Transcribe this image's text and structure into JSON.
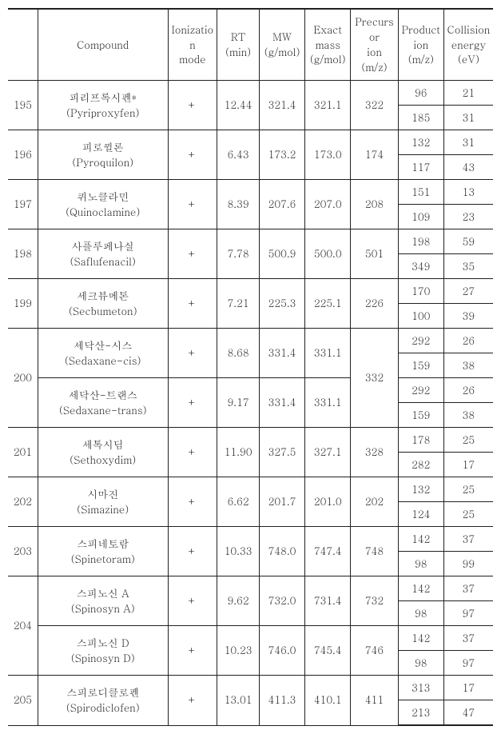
{
  "colors": {
    "border": "#231f20",
    "text": "#231f20",
    "background": "#ffffff"
  },
  "typography": {
    "font_family": "Malgun Gothic / Batang, serif",
    "font_size_pt": 10
  },
  "table": {
    "type": "table",
    "columns": [
      {
        "key": "idx",
        "label": ""
      },
      {
        "key": "compound",
        "label": "Compound"
      },
      {
        "key": "ionization",
        "label": "Ionization\nmode"
      },
      {
        "key": "rt",
        "label": "RT\n(min)"
      },
      {
        "key": "mw",
        "label": "MW\n(g/mol)"
      },
      {
        "key": "exact_mass",
        "label": "Exact\nmass\n(g/mol)"
      },
      {
        "key": "precursor",
        "label": "Precursor\nion\n(m/z)"
      },
      {
        "key": "product",
        "label": "Product\nion\n(m/z)"
      },
      {
        "key": "collision",
        "label": "Collision\nenergy\n(eV)"
      }
    ],
    "rows": [
      {
        "idx": "195",
        "compounds": [
          {
            "name_ko": "피리프록시펜*",
            "name_en": "(Pyriproxyfen)",
            "ionization": "+",
            "rt": "12.44",
            "mw": "321.4",
            "exact_mass": "321.1",
            "products": [
              {
                "prod": "96",
                "ce": "21"
              },
              {
                "prod": "185",
                "ce": "31"
              }
            ]
          }
        ],
        "precursor": "322"
      },
      {
        "idx": "196",
        "compounds": [
          {
            "name_ko": "피로퀼론",
            "name_en": "(Pyroquilon)",
            "ionization": "+",
            "rt": "6.43",
            "mw": "173.2",
            "exact_mass": "173.0",
            "products": [
              {
                "prod": "132",
                "ce": "31"
              },
              {
                "prod": "117",
                "ce": "43"
              }
            ]
          }
        ],
        "precursor": "174"
      },
      {
        "idx": "197",
        "compounds": [
          {
            "name_ko": "퀴노클라민",
            "name_en": "(Quinoclamine)",
            "ionization": "+",
            "rt": "8.39",
            "mw": "207.6",
            "exact_mass": "207.0",
            "products": [
              {
                "prod": "151",
                "ce": "13"
              },
              {
                "prod": "109",
                "ce": "23"
              }
            ]
          }
        ],
        "precursor": "208"
      },
      {
        "idx": "198",
        "compounds": [
          {
            "name_ko": "사플루페나실",
            "name_en": "(Saflufenacil)",
            "ionization": "+",
            "rt": "7.78",
            "mw": "500.9",
            "exact_mass": "500.0",
            "products": [
              {
                "prod": "198",
                "ce": "59"
              },
              {
                "prod": "349",
                "ce": "35"
              }
            ]
          }
        ],
        "precursor": "501"
      },
      {
        "idx": "199",
        "compounds": [
          {
            "name_ko": "세크뷰메톤",
            "name_en": "(Secbumeton)",
            "ionization": "+",
            "rt": "7.21",
            "mw": "225.3",
            "exact_mass": "225.1",
            "products": [
              {
                "prod": "170",
                "ce": "27"
              },
              {
                "prod": "100",
                "ce": "39"
              }
            ]
          }
        ],
        "precursor": "226"
      },
      {
        "idx": "200",
        "compounds": [
          {
            "name_ko": "세닥산-시스",
            "name_en": "(Sedaxane-cis)",
            "ionization": "+",
            "rt": "8.68",
            "mw": "331.4",
            "exact_mass": "331.1",
            "products": [
              {
                "prod": "292",
                "ce": "26"
              },
              {
                "prod": "159",
                "ce": "38"
              }
            ]
          },
          {
            "name_ko": "세닥산-트랜스",
            "name_en": "(Sedaxane-trans)",
            "ionization": "+",
            "rt": "9.17",
            "mw": "331.4",
            "exact_mass": "331.1",
            "products": [
              {
                "prod": "292",
                "ce": "26"
              },
              {
                "prod": "159",
                "ce": "38"
              }
            ]
          }
        ],
        "precursor": "332"
      },
      {
        "idx": "201",
        "compounds": [
          {
            "name_ko": "세톡시딤",
            "name_en": "(Sethoxydim)",
            "ionization": "+",
            "rt": "11.90",
            "mw": "327.5",
            "exact_mass": "327.1",
            "products": [
              {
                "prod": "178",
                "ce": "25"
              },
              {
                "prod": "282",
                "ce": "17"
              }
            ]
          }
        ],
        "precursor": "328"
      },
      {
        "idx": "202",
        "compounds": [
          {
            "name_ko": "시마진",
            "name_en": "(Simazine)",
            "ionization": "+",
            "rt": "6.62",
            "mw": "201.7",
            "exact_mass": "201.0",
            "products": [
              {
                "prod": "132",
                "ce": "25"
              },
              {
                "prod": "124",
                "ce": "25"
              }
            ]
          }
        ],
        "precursor": "202"
      },
      {
        "idx": "203",
        "compounds": [
          {
            "name_ko": "스피네토람",
            "name_en": "(Spinetoram)",
            "ionization": "+",
            "rt": "10.33",
            "mw": "748.0",
            "exact_mass": "747.4",
            "products": [
              {
                "prod": "142",
                "ce": "37"
              },
              {
                "prod": "98",
                "ce": "99"
              }
            ]
          }
        ],
        "precursor": "748"
      },
      {
        "idx": "204",
        "compounds": [
          {
            "name_ko": "스피노신 A",
            "name_en": "(Spinosyn A)",
            "ionization": "+",
            "rt": "9.62",
            "mw": "732.0",
            "exact_mass": "731.4",
            "products": [
              {
                "prod": "142",
                "ce": "37"
              },
              {
                "prod": "98",
                "ce": "97"
              }
            ],
            "own_precursor": "732"
          },
          {
            "name_ko": "스피노신 D",
            "name_en": "(Spinosyn D)",
            "ionization": "+",
            "rt": "10.23",
            "mw": "746.0",
            "exact_mass": "745.4",
            "products": [
              {
                "prod": "142",
                "ce": "37"
              },
              {
                "prod": "98",
                "ce": "97"
              }
            ],
            "own_precursor": "746"
          }
        ],
        "precursor": null
      },
      {
        "idx": "205",
        "compounds": [
          {
            "name_ko": "스피로디클로펜",
            "name_en": "(Spirodiclofen)",
            "ionization": "+",
            "rt": "13.01",
            "mw": "411.3",
            "exact_mass": "410.1",
            "products": [
              {
                "prod": "313",
                "ce": "17"
              },
              {
                "prod": "213",
                "ce": "47"
              }
            ]
          }
        ],
        "precursor": "411"
      }
    ]
  }
}
